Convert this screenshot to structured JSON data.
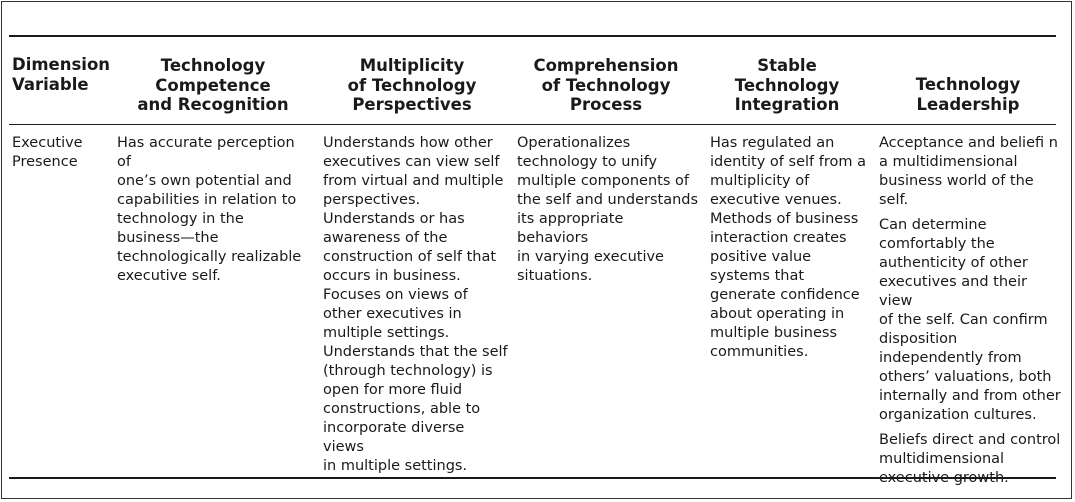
{
  "table": {
    "headers": [
      "Dimension\nVariable",
      "Technology\nCompetence\nand Recognition",
      "Multiplicity\nof Technology\nPerspectives",
      "Comprehension\nof Technology\nProcess",
      "Stable\nTechnology\nIntegration",
      "Technology\nLeadership"
    ],
    "row": {
      "dimension": "Executive\nPresence",
      "competence": "Has accurate perception of\none’s own potential and\ncapabilities in relation to\ntechnology in the\nbusiness—the\ntechnologically realizable\nexecutive self.",
      "multiplicity": [
        "Understands how other\nexecutives can view self\nfrom virtual and multiple\nperspectives.",
        "Understands or has\nawareness of the\nconstruction of self that\noccurs in business.",
        "Focuses on views of\nother executives in\nmultiple settings.",
        "Understands that the self\n(through technology) is\nopen for more fluid\nconstructions, able to\nincorporate diverse views\nin multiple settings."
      ],
      "comprehension": "Operationalizes\ntechnology to unify\nmultiple components of\nthe self and understands\nits appropriate behaviors\nin varying executive\nsituations.",
      "integration": [
        "Has regulated an\nidentity of self from a\nmultiplicity of\nexecutive venues.",
        "Methods of business\ninteraction creates\npositive value\nsystems that\ngenerate confidence\nabout operating in\nmultiple business\ncommunities."
      ],
      "leadership": [
        "Acceptance and beliefi n\na multidimensional\nbusiness world of the\nself.",
        "Can determine\ncomfortably the\nauthenticity of other\nexecutives and their view\nof the self. Can confirm\ndisposition\nindependently from\nothers’ valuations, both\ninternally and from other\norganization cultures.",
        "Beliefs direct and control\nmultidimensional\nexecutive growth."
      ]
    }
  }
}
